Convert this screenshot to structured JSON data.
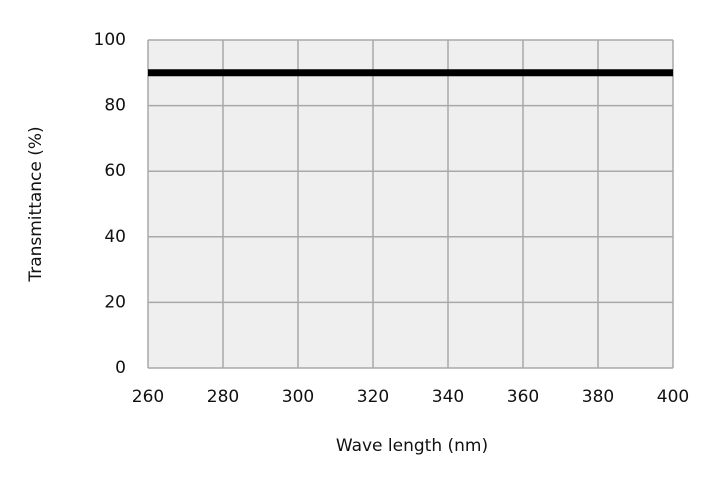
{
  "chart_data": {
    "type": "line",
    "x": [
      260,
      400
    ],
    "values": [
      90,
      90
    ],
    "color": "#000000",
    "x_label": "Wave length (nm)",
    "y_label": "Transmittance (%)",
    "xlim": [
      260,
      400
    ],
    "xticks": [
      260,
      280,
      300,
      320,
      340,
      360,
      380,
      400
    ],
    "ylim": [
      0,
      100
    ],
    "yticks": [
      0,
      20,
      40,
      60,
      80,
      100
    ],
    "grid": true,
    "plot_background": "#efefef"
  }
}
